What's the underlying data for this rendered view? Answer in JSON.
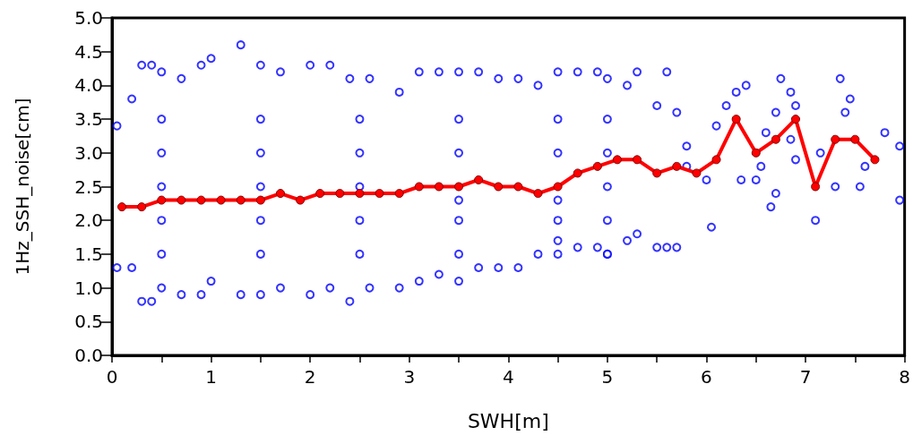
{
  "chart_data": {
    "type": "scatter",
    "xlabel": "SWH[m]",
    "ylabel": "1Hz_SSH_noise[cm]",
    "xlim": [
      0,
      8
    ],
    "xticks": [
      0,
      {
        "value": 0.5,
        "label": null
      },
      1,
      {
        "value": 1.5,
        "label": null
      },
      2,
      {
        "value": 2.5,
        "label": null
      },
      3,
      {
        "value": 3.5,
        "label": null
      },
      4,
      {
        "value": 4.5,
        "label": null
      },
      5,
      {
        "value": 5.5,
        "label": null
      },
      6,
      {
        "value": 6.5,
        "label": null
      },
      7,
      {
        "value": 7.5,
        "label": null
      },
      8
    ],
    "ylim": [
      0,
      5
    ],
    "yticks": [
      {
        "value": 0,
        "label": "0.0"
      },
      {
        "value": 0.5,
        "label": "0.5"
      },
      {
        "value": 1,
        "label": "1.0"
      },
      {
        "value": 1.5,
        "label": "1.5"
      },
      {
        "value": 2,
        "label": "2.0"
      },
      {
        "value": 2.5,
        "label": "2.5"
      },
      {
        "value": 3,
        "label": "3.0"
      },
      {
        "value": 3.5,
        "label": "3.5"
      },
      {
        "value": 4,
        "label": "4.0"
      },
      {
        "value": 4.5,
        "label": "4.5"
      },
      {
        "value": 5,
        "label": "5.0"
      }
    ],
    "grid": false,
    "marker": "circle",
    "series": [
      {
        "color": "#0000ff",
        "x": [
          0.05,
          0.2,
          0.3,
          0.4,
          0.5,
          0.7,
          0.9,
          1.0,
          1.3,
          1.5,
          1.7,
          2.0,
          2.2,
          2.4,
          2.6,
          2.9,
          3.1,
          3.3,
          3.5,
          3.7,
          3.9,
          4.1,
          4.3,
          4.5,
          4.7,
          4.9,
          5.0,
          5.2,
          5.3,
          5.5,
          5.6,
          5.7,
          5.8,
          0.05,
          0.2,
          0.3,
          0.4,
          0.5,
          0.7,
          0.9,
          1.0,
          1.3,
          1.5,
          1.7,
          2.0,
          2.2,
          2.4,
          2.6,
          2.9,
          3.1,
          3.3,
          3.5,
          3.7,
          3.9,
          4.1,
          4.3,
          4.5,
          4.7,
          4.9,
          5.0,
          5.2,
          5.3,
          5.5,
          5.6,
          5.7,
          5.8,
          0.5,
          0.5,
          0.5,
          0.5,
          0.5,
          1.5,
          1.5,
          1.5,
          1.5,
          1.5,
          2.5,
          2.5,
          2.5,
          2.5,
          2.5,
          3.5,
          3.5,
          3.5,
          3.5,
          3.5,
          4.5,
          4.5,
          4.5,
          4.5,
          4.5,
          5.0,
          5.0,
          5.0,
          5.0,
          5.0,
          6.0,
          6.05,
          6.1,
          6.2,
          6.3,
          6.4,
          6.35,
          6.5,
          6.55,
          6.6,
          6.65,
          6.7,
          6.7,
          6.75,
          6.85,
          6.85,
          6.9,
          6.9,
          7.1,
          7.15,
          7.3,
          7.35,
          7.4,
          7.45,
          7.55,
          7.6,
          7.8,
          7.95,
          7.95
        ],
        "values": [
          3.4,
          3.8,
          4.3,
          4.3,
          4.2,
          4.1,
          4.3,
          4.4,
          4.6,
          4.3,
          4.2,
          4.3,
          4.3,
          4.1,
          4.1,
          3.9,
          4.2,
          4.2,
          4.2,
          4.2,
          4.1,
          4.1,
          4.0,
          4.2,
          4.2,
          4.2,
          4.1,
          4.0,
          4.2,
          3.7,
          4.2,
          3.6,
          3.1,
          1.3,
          1.3,
          0.8,
          0.8,
          1.0,
          0.9,
          0.9,
          1.1,
          0.9,
          0.9,
          1.0,
          0.9,
          1.0,
          0.8,
          1.0,
          1.0,
          1.1,
          1.2,
          1.1,
          1.3,
          1.3,
          1.3,
          1.5,
          1.7,
          1.6,
          1.6,
          1.5,
          1.7,
          1.8,
          1.6,
          1.6,
          1.6,
          2.8,
          1.5,
          2.0,
          2.5,
          3.0,
          3.5,
          1.5,
          2.0,
          2.5,
          3.0,
          3.5,
          1.5,
          2.0,
          2.5,
          3.0,
          3.5,
          1.5,
          2.0,
          2.3,
          3.0,
          3.5,
          1.5,
          2.0,
          2.3,
          3.0,
          3.5,
          1.5,
          2.0,
          2.5,
          3.0,
          3.5,
          2.6,
          1.9,
          3.4,
          3.7,
          3.9,
          4.0,
          2.6,
          2.6,
          2.8,
          3.3,
          2.2,
          2.4,
          3.6,
          4.1,
          3.2,
          3.9,
          2.9,
          3.7,
          2.0,
          3.0,
          2.5,
          4.1,
          3.6,
          3.8,
          2.5,
          2.8,
          3.3,
          3.1,
          2.3
        ]
      },
      {
        "type": "line",
        "color": "#ff0000",
        "x": [
          0.1,
          0.3,
          0.5,
          0.7,
          0.9,
          1.1,
          1.3,
          1.5,
          1.7,
          1.9,
          2.1,
          2.3,
          2.5,
          2.7,
          2.9,
          3.1,
          3.3,
          3.5,
          3.7,
          3.9,
          4.1,
          4.3,
          4.5,
          4.7,
          4.9,
          5.1,
          5.3,
          5.5,
          5.7,
          5.9,
          6.1,
          6.3,
          6.5,
          6.7,
          6.9,
          7.1,
          7.3,
          7.5,
          7.7
        ],
        "values": [
          2.2,
          2.2,
          2.3,
          2.3,
          2.3,
          2.3,
          2.3,
          2.3,
          2.4,
          2.3,
          2.4,
          2.4,
          2.4,
          2.4,
          2.4,
          2.5,
          2.5,
          2.5,
          2.6,
          2.5,
          2.5,
          2.4,
          2.5,
          2.7,
          2.8,
          2.9,
          2.9,
          2.7,
          2.8,
          2.7,
          2.9,
          3.5,
          3.0,
          3.2,
          3.5,
          2.5,
          3.2,
          3.2,
          2.9
        ]
      }
    ]
  }
}
